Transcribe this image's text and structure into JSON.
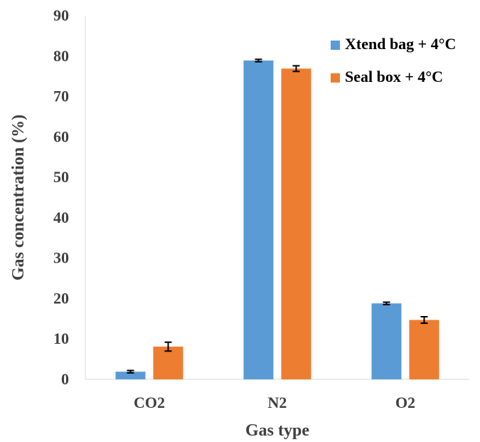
{
  "chart_data": {
    "type": "bar",
    "categories": [
      "CO2",
      "N2",
      "O2"
    ],
    "series": [
      {
        "name": "Xtend bag + 4°C",
        "values": [
          1.9,
          78.9,
          18.8
        ],
        "errors": [
          0.3,
          0.3,
          0.3
        ],
        "color": "#5b9bd5"
      },
      {
        "name": "Seal box + 4°C",
        "values": [
          8.1,
          76.9,
          14.7
        ],
        "errors": [
          1.1,
          0.7,
          0.8
        ],
        "color": "#ed7d31"
      }
    ],
    "xlabel": "Gas type",
    "ylabel": "Gas concentration (%)",
    "ylim": [
      0,
      90
    ],
    "yticks": [
      "0",
      "10",
      "20",
      "30",
      "40",
      "50",
      "60",
      "70",
      "80",
      "90"
    ],
    "grid": false,
    "legend": "top-right",
    "error_bars": true
  }
}
